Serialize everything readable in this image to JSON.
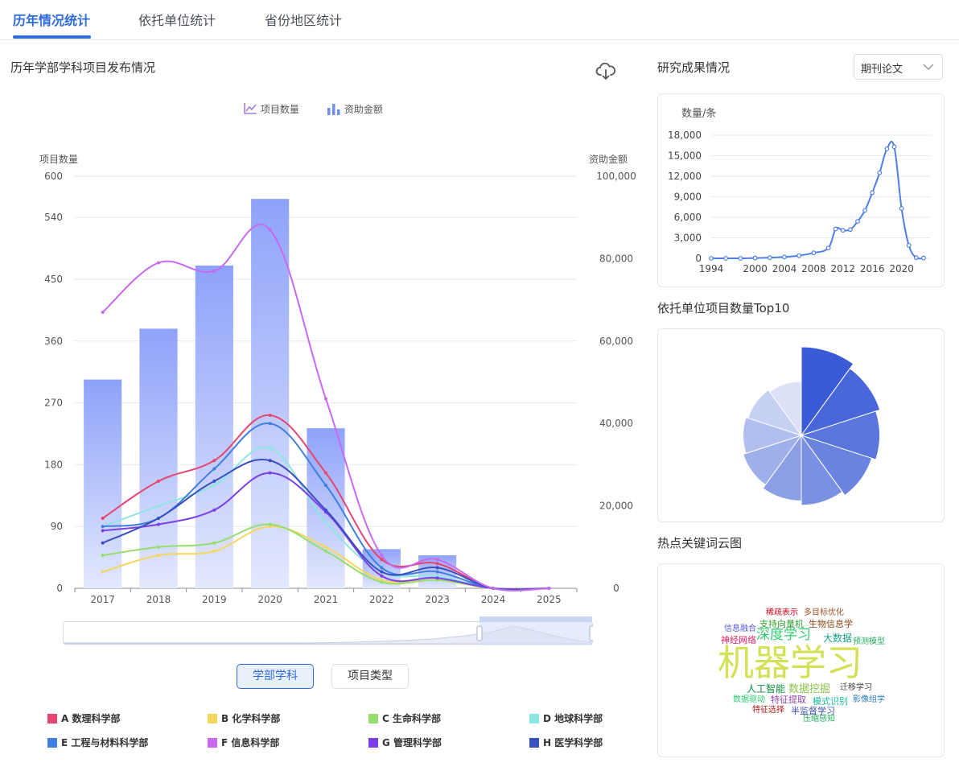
{
  "tabs": [
    "历年情况统计",
    "依托单位统计",
    "省份地区统计"
  ],
  "main": {
    "title": "历年学部学科项目发布情况",
    "toggles": [
      "项目数量",
      "资助金额"
    ],
    "left_axis_title": "项目数量",
    "right_axis_title": "资助金额",
    "segment_buttons": [
      "学部学科",
      "项目类型"
    ],
    "legend": [
      {
        "label": "A 数理科学部",
        "color": "#e6456f"
      },
      {
        "label": "B 化学科学部",
        "color": "#f5d65e"
      },
      {
        "label": "C 生命科学部",
        "color": "#95dd6e"
      },
      {
        "label": "D 地球科学部",
        "color": "#8ee6e0"
      },
      {
        "label": "E 工程与材料科学部",
        "color": "#3f7fe0"
      },
      {
        "label": "F 信息科学部",
        "color": "#c86af0"
      },
      {
        "label": "G 管理科学部",
        "color": "#7c3fe8"
      },
      {
        "label": "H 医学科学部",
        "color": "#3a4fbf"
      }
    ]
  },
  "chart_data": [
    {
      "type": "bar",
      "categories": [
        "2017",
        "2018",
        "2019",
        "2020",
        "2021",
        "2022",
        "2023",
        "2024",
        "2025"
      ],
      "y_left": {
        "name": "项目数量",
        "ticks": [
          "0",
          "90",
          "180",
          "270",
          "360",
          "450",
          "540",
          "600"
        ],
        "ylim": [
          0,
          600
        ]
      },
      "y_right": {
        "name": "资助金额",
        "ticks": [
          "0",
          "20,000",
          "40,000",
          "60,000",
          "80,000",
          "100,000"
        ],
        "ylim": [
          0,
          100000
        ]
      },
      "bars": {
        "name": "项目数量",
        "values": [
          304,
          378,
          470,
          567,
          233,
          57,
          48,
          0,
          0
        ]
      },
      "funding_line": {
        "name": "F 信息科学部",
        "values": [
          67000,
          79000,
          77000,
          87000,
          46000,
          8000,
          7000,
          0,
          0
        ]
      },
      "series": [
        {
          "name": "A 数理科学部",
          "values": [
            17000,
            26000,
            31000,
            42000,
            28000,
            7000,
            6000,
            0,
            0
          ]
        },
        {
          "name": "B 化学科学部",
          "values": [
            4000,
            8000,
            9000,
            15000,
            10000,
            2000,
            2000,
            0,
            0
          ]
        },
        {
          "name": "C 生命科学部",
          "values": [
            8000,
            10000,
            11000,
            15500,
            9000,
            1500,
            2000,
            0,
            0
          ]
        },
        {
          "name": "D 地球科学部",
          "values": [
            15000,
            20000,
            25000,
            34000,
            16000,
            4000,
            3000,
            0,
            0
          ]
        },
        {
          "name": "E 工程与材料科学部",
          "values": [
            15000,
            17000,
            29000,
            40000,
            25000,
            5000,
            4000,
            0,
            0
          ]
        },
        {
          "name": "G 管理科学部",
          "values": [
            14000,
            15500,
            19000,
            28000,
            18500,
            3000,
            2500,
            0,
            0
          ]
        },
        {
          "name": "H 医学科学部",
          "values": [
            11000,
            17000,
            26000,
            31000,
            19000,
            4000,
            5000,
            0,
            0
          ]
        }
      ],
      "grid": true
    },
    {
      "type": "line",
      "title": "研究成果情况",
      "ylabel": "数量/条",
      "x": [
        1994,
        1996,
        1998,
        2000,
        2002,
        2004,
        2006,
        2008,
        2010,
        2011,
        2012,
        2013,
        2014,
        2015,
        2016,
        2017,
        2018,
        2019,
        2020,
        2021,
        2022,
        2023
      ],
      "values": [
        0,
        0,
        0,
        50,
        100,
        200,
        400,
        800,
        1500,
        4300,
        4100,
        4200,
        5400,
        7000,
        9600,
        12500,
        16000,
        16300,
        7300,
        1900,
        100,
        50
      ],
      "ylim": [
        0,
        18000
      ],
      "y_ticks": [
        "0",
        "3,000",
        "6,000",
        "9,000",
        "12,000",
        "15,000",
        "18,000"
      ],
      "x_ticks": [
        "1994",
        "2000",
        "2004",
        "2008",
        "2012",
        "2016",
        "2020"
      ],
      "grid": true
    },
    {
      "type": "pie",
      "title": "依托单位项目数量Top10",
      "rose": true,
      "values": [
        100,
        92,
        86,
        80,
        74,
        68,
        62,
        58,
        55,
        52
      ]
    }
  ],
  "right": {
    "research_title": "研究成果情况",
    "select_value": "期刊论文",
    "top10_title": "依托单位项目数量Top10",
    "wordcloud_title": "热点关键词云图",
    "wordcloud": [
      {
        "text": "稀疏表示",
        "color": "#d0021b"
      },
      {
        "text": "多目标优化",
        "color": "#a0522d"
      },
      {
        "text": "支持向量机",
        "color": "#2ca02c"
      },
      {
        "text": "生物信息学",
        "color": "#8b4513"
      },
      {
        "text": "信息融合",
        "color": "#5856d6"
      },
      {
        "text": "深度学习",
        "color": "#2ecc71"
      },
      {
        "text": "大数据",
        "color": "#16a085"
      },
      {
        "text": "神经网络",
        "color": "#e91e63"
      },
      {
        "text": "预测模型",
        "color": "#27ae60"
      },
      {
        "text": "机器学习",
        "color": "#d4e157"
      },
      {
        "text": "人工智能",
        "color": "#0a8f3c"
      },
      {
        "text": "数据挖掘",
        "color": "#8bc34a"
      },
      {
        "text": "迁移学习",
        "color": "#444444"
      },
      {
        "text": "数据驱动",
        "color": "#2ecc71"
      },
      {
        "text": "特征提取",
        "color": "#8e44ad"
      },
      {
        "text": "模式识别",
        "color": "#1abc9c"
      },
      {
        "text": "影像组学",
        "color": "#2980b9"
      },
      {
        "text": "特征选择",
        "color": "#b71c1c"
      },
      {
        "text": "半监督学习",
        "color": "#3f51b5"
      },
      {
        "text": "压缩感知",
        "color": "#27ae60"
      }
    ]
  }
}
